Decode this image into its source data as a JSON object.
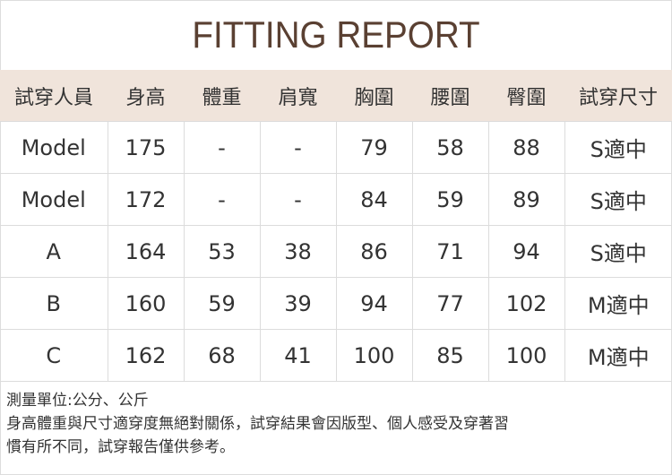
{
  "title": "FITTING REPORT",
  "colors": {
    "header_bg": "#f0e4db",
    "title": "#5a4032"
  },
  "table": {
    "headers": [
      "試穿人員",
      "身高",
      "體重",
      "肩寬",
      "胸圍",
      "腰圍",
      "臀圍",
      "試穿尺寸"
    ],
    "rows": [
      [
        "Model",
        "175",
        "-",
        "-",
        "79",
        "58",
        "88",
        "S適中"
      ],
      [
        "Model",
        "172",
        "-",
        "-",
        "84",
        "59",
        "89",
        "S適中"
      ],
      [
        "A",
        "164",
        "53",
        "38",
        "86",
        "71",
        "94",
        "S適中"
      ],
      [
        "B",
        "160",
        "59",
        "39",
        "94",
        "77",
        "102",
        "M適中"
      ],
      [
        "C",
        "162",
        "68",
        "41",
        "100",
        "85",
        "100",
        "M適中"
      ]
    ]
  },
  "footer": {
    "line1": "測量單位:公分、公斤",
    "line2": "身高體重與尺寸適穿度無絕對關係，試穿結果會因版型、個人感受及穿著習",
    "line3": "慣有所不同，試穿報告僅供參考。"
  }
}
